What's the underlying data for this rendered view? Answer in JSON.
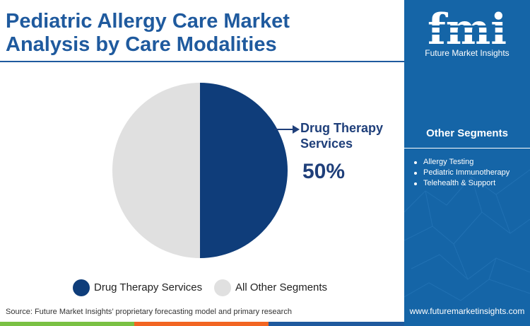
{
  "header": {
    "title_line1": "Pediatric Allergy Care Market",
    "title_line2": "Analysis by Care Modalities"
  },
  "chart_data": {
    "type": "pie",
    "slices": [
      {
        "label": "Drug Therapy Services",
        "value": 50,
        "color": "#0f3d7a"
      },
      {
        "label": "All Other Segments",
        "value": 50,
        "color": "#e0e0e0"
      }
    ],
    "callout": {
      "label": "Drug Therapy Services",
      "value_text": "50%"
    },
    "legend_position": "bottom"
  },
  "footer": {
    "source": "Source: Future Market Insights’ proprietary forecasting model and primary research"
  },
  "sidebar": {
    "logo_text": "fmi",
    "tagline": "Future Market Insights",
    "segments_title": "Other Segments",
    "segments": [
      "Allergy Testing",
      "Pediatric Immunotherapy",
      "Telehealth & Support"
    ],
    "website": "www.futuremarketinsights.com"
  },
  "colors": {
    "brand_blue": "#1565a7",
    "title_blue": "#1f5a9e",
    "bar_green": "#7ac143",
    "bar_orange": "#f26522",
    "bar_blue": "#1f5a9e"
  }
}
